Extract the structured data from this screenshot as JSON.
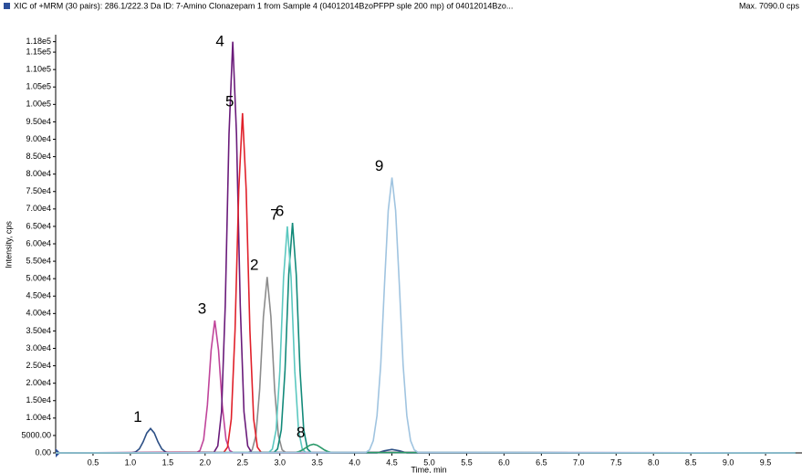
{
  "chart_data": {
    "type": "line",
    "title": "XIC of +MRM (30 pairs): 286.1/222.3 Da ID: 7-Amino Clonazepam 1 from Sample 4 (04012014BzoPFPP sple 200 mp) of 04012014Bzo...",
    "subtitle": "Max. 7090.0 cps",
    "x_label": "Time, min",
    "y_label": "Intensity, cps",
    "xlim": [
      0,
      10
    ],
    "ylim": [
      0,
      120000
    ],
    "xticks": [
      0.5,
      {
        "value": 1,
        "label": "1.0"
      },
      1.5,
      {
        "value": 2,
        "label": "2.0"
      },
      2.5,
      {
        "value": 3,
        "label": "3.0"
      },
      3.5,
      {
        "value": 4,
        "label": "4.0"
      },
      4.5,
      {
        "value": 5,
        "label": "5.0"
      },
      5.5,
      {
        "value": 6,
        "label": "6.0"
      },
      6.5,
      {
        "value": 7,
        "label": "7.0"
      },
      7.5,
      {
        "value": 8,
        "label": "8.0"
      },
      8.5,
      {
        "value": 9,
        "label": "9.0"
      },
      9.5
    ],
    "yticks": [
      {
        "value": 0,
        "label": "0.00"
      },
      {
        "value": 5000,
        "label": "5000.00"
      },
      {
        "value": 10000,
        "label": "1.00e4"
      },
      {
        "value": 15000,
        "label": "1.50e4"
      },
      {
        "value": 20000,
        "label": "2.00e4"
      },
      {
        "value": 25000,
        "label": "2.50e4"
      },
      {
        "value": 30000,
        "label": "3.00e4"
      },
      {
        "value": 35000,
        "label": "3.50e4"
      },
      {
        "value": 40000,
        "label": "4.00e4"
      },
      {
        "value": 45000,
        "label": "4.50e4"
      },
      {
        "value": 50000,
        "label": "5.00e4"
      },
      {
        "value": 55000,
        "label": "5.50e4"
      },
      {
        "value": 60000,
        "label": "6.00e4"
      },
      {
        "value": 65000,
        "label": "6.50e4"
      },
      {
        "value": 70000,
        "label": "7.00e4"
      },
      {
        "value": 75000,
        "label": "7.50e4"
      },
      {
        "value": 80000,
        "label": "8.00e4"
      },
      {
        "value": 85000,
        "label": "8.50e4"
      },
      {
        "value": 90000,
        "label": "9.00e4"
      },
      {
        "value": 95000,
        "label": "9.50e4"
      },
      {
        "value": 100000,
        "label": "1.00e5"
      },
      {
        "value": 105000,
        "label": "1.05e5"
      },
      {
        "value": 110000,
        "label": "1.10e5"
      },
      {
        "value": 115000,
        "label": "1.15e5"
      },
      {
        "value": 118000,
        "label": "1.18e5"
      }
    ],
    "series": [
      {
        "name": "1",
        "color": "#2c4f85",
        "x": [
          0,
          1.02,
          1.07,
          1.12,
          1.17,
          1.22,
          1.27,
          1.32,
          1.37,
          1.42,
          1.47,
          1.52,
          4.3,
          4.4,
          4.5,
          4.6,
          4.7,
          9.9
        ],
        "values": [
          0,
          50,
          300,
          1150,
          3150,
          5700,
          7000,
          5700,
          3150,
          1150,
          300,
          50,
          0,
          600,
          1000,
          600,
          0,
          0
        ]
      },
      {
        "name": "2",
        "color": "#8c8c8c",
        "x": [
          0,
          2.58,
          2.63,
          2.68,
          2.73,
          2.78,
          2.83,
          2.88,
          2.93,
          2.98,
          3.03,
          3.08,
          9.9
        ],
        "values": [
          0,
          90,
          860,
          5050,
          18200,
          39100,
          50500,
          39100,
          18200,
          5050,
          860,
          90,
          0
        ]
      },
      {
        "name": "3",
        "color": "#c0449a",
        "x": [
          0,
          1.88,
          1.93,
          1.98,
          2.03,
          2.08,
          2.13,
          2.18,
          2.23,
          2.28,
          2.33,
          2.38,
          9.9
        ],
        "values": [
          0,
          60,
          650,
          3800,
          13700,
          29500,
          38000,
          29500,
          13700,
          3800,
          650,
          60,
          0
        ]
      },
      {
        "name": "4",
        "color": "#6a1b7a",
        "x": [
          0,
          2.12,
          2.17,
          2.22,
          2.27,
          2.32,
          2.37,
          2.42,
          2.47,
          2.52,
          2.57,
          2.62,
          9.9
        ],
        "values": [
          0,
          200,
          2000,
          11800,
          42500,
          91500,
          118000,
          91500,
          42500,
          11800,
          2000,
          200,
          0
        ]
      },
      {
        "name": "5",
        "color": "#e0202a",
        "x": [
          0,
          2.25,
          2.3,
          2.35,
          2.4,
          2.45,
          2.5,
          2.55,
          2.6,
          2.65,
          2.7,
          2.75,
          9.9
        ],
        "values": [
          0,
          170,
          1660,
          9750,
          35100,
          75600,
          97500,
          75600,
          35100,
          9750,
          1660,
          170,
          0
        ]
      },
      {
        "name": "6",
        "color": "#138a7a",
        "x": [
          0,
          2.92,
          2.97,
          3.02,
          3.07,
          3.12,
          3.17,
          3.22,
          3.27,
          3.32,
          3.37,
          3.42,
          9.9
        ],
        "values": [
          0,
          110,
          1120,
          6600,
          23800,
          51200,
          66000,
          51200,
          23800,
          6600,
          1120,
          110,
          0
        ]
      },
      {
        "name": "7",
        "color": "#5cc8c0",
        "x": [
          0,
          2.85,
          2.9,
          2.95,
          3.0,
          3.05,
          3.1,
          3.15,
          3.2,
          3.25,
          3.3,
          3.35,
          9.9
        ],
        "values": [
          0,
          110,
          1100,
          6500,
          23400,
          50400,
          65000,
          50400,
          23400,
          6500,
          1100,
          110,
          0
        ]
      },
      {
        "name": "8",
        "color": "#2a9a6a",
        "x": [
          0,
          3.2,
          3.25,
          3.3,
          3.35,
          3.4,
          3.45,
          3.5,
          3.55,
          3.6,
          3.65,
          3.7,
          9.9
        ],
        "values": [
          0,
          110,
          340,
          800,
          1520,
          2200,
          2500,
          2200,
          1520,
          800,
          340,
          110,
          0
        ]
      },
      {
        "name": "9",
        "color": "#a0c4e0",
        "x": [
          0,
          4.15,
          4.2,
          4.25,
          4.3,
          4.35,
          4.4,
          4.45,
          4.5,
          4.55,
          4.6,
          4.65,
          4.7,
          4.75,
          4.8,
          4.85,
          9.9
        ],
        "values": [
          0,
          160,
          870,
          3500,
          10700,
          25300,
          48200,
          69500,
          79000,
          69500,
          48200,
          25300,
          10700,
          3500,
          870,
          160,
          0
        ]
      }
    ]
  }
}
